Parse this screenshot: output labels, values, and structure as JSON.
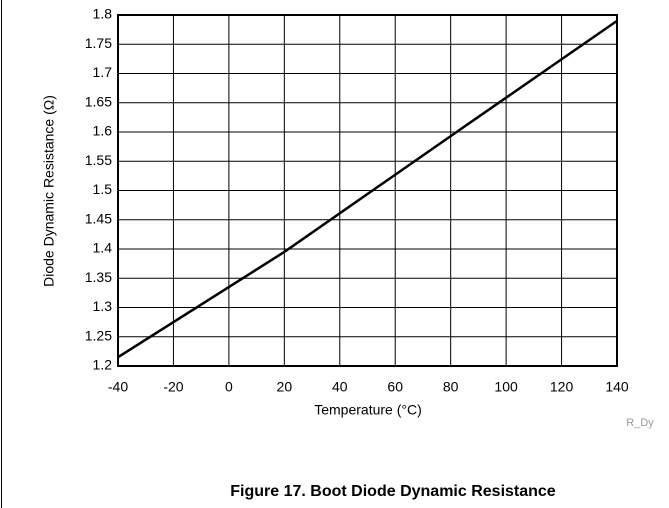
{
  "chart_data": {
    "type": "line",
    "x_label": "Temperature (°C)",
    "y_label": "Diode Dynamic Resistance (Ω)",
    "caption": "Figure 17. Boot Diode Dynamic Resistance",
    "annotation": "R_Dy",
    "x": [
      -40,
      20,
      80,
      140
    ],
    "series": [
      {
        "name": "Dynamic Resistance",
        "color": "#000000",
        "values": [
          1.215,
          1.395,
          1.593,
          1.79
        ]
      }
    ],
    "xlim": [
      -40,
      140
    ],
    "xticks": [
      -40,
      -20,
      0,
      20,
      40,
      60,
      80,
      100,
      120,
      140
    ],
    "ylim": [
      1.2,
      1.8
    ],
    "yticks": [
      1.2,
      1.25,
      1.3,
      1.35,
      1.4,
      1.45,
      1.5,
      1.55,
      1.6,
      1.65,
      1.7,
      1.75,
      1.8
    ],
    "grid": true
  }
}
